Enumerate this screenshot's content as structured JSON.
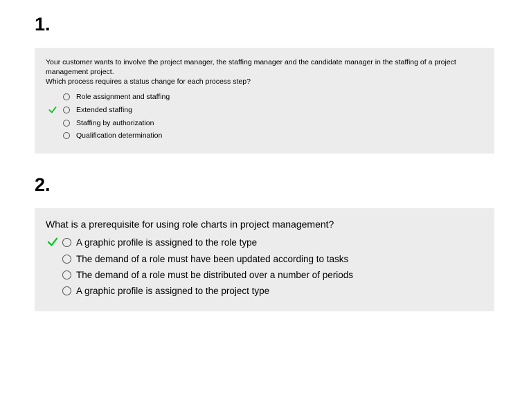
{
  "colors": {
    "card_bg": "#ececec",
    "body_bg": "#ffffff",
    "text": "#000000",
    "radio_border": "#555555",
    "check_green": "#00c21e"
  },
  "questions": [
    {
      "number": "1.",
      "text_line1": "Your customer wants to involve the project manager, the staffing manager and the candidate manager in the staffing of a project management project.",
      "text_line2": "Which process requires a status change for each process step?",
      "font_scale": "small",
      "options": [
        {
          "label": "Role assignment and staffing",
          "correct": false
        },
        {
          "label": "Extended staffing",
          "correct": true
        },
        {
          "label": "Staffing by authorization",
          "correct": false
        },
        {
          "label": "Qualification determination",
          "correct": false
        }
      ]
    },
    {
      "number": "2.",
      "text_line1": "What is a prerequisite for using role charts in project management?",
      "text_line2": "",
      "font_scale": "large",
      "options": [
        {
          "label": "A graphic profile is assigned to the role type",
          "correct": true
        },
        {
          "label": "The demand of a role must have been updated according to tasks",
          "correct": false
        },
        {
          "label": "The demand of a role must be distributed over a number of periods",
          "correct": false
        },
        {
          "label": "A graphic profile is assigned to the project type",
          "correct": false
        }
      ]
    }
  ]
}
